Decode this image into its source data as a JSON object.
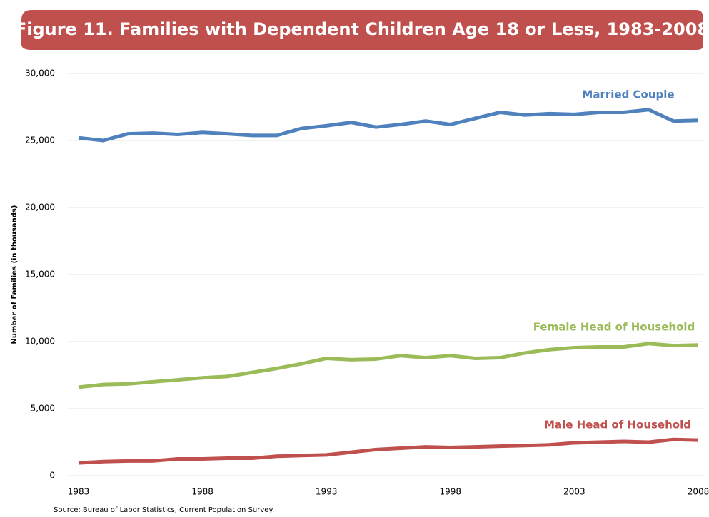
{
  "chart_data": {
    "type": "line",
    "title": "Figure 11. Families with Dependent Children Age 18 or Less, 1983-2008",
    "y_label": "Number of Families (in thousands)",
    "source": "Source: Bureau of Labor Statistics, Current Population Survey.",
    "x": [
      1983,
      1984,
      1985,
      1986,
      1987,
      1988,
      1989,
      1990,
      1991,
      1992,
      1993,
      1994,
      1995,
      1996,
      1997,
      1998,
      1999,
      2000,
      2001,
      2002,
      2003,
      2004,
      2005,
      2006,
      2007,
      2008
    ],
    "series": [
      {
        "name": "Married Couple",
        "color": "#4f81bd",
        "values": [
          25200,
          25000,
          25500,
          25550,
          25450,
          25600,
          25500,
          25380,
          25380,
          25900,
          26100,
          26350,
          26000,
          26200,
          26450,
          26200,
          26650,
          27100,
          26900,
          27000,
          26950,
          27100,
          27100,
          27300,
          26450,
          26500
        ]
      },
      {
        "name": "Female Head of Household",
        "color": "#9bbb59",
        "values": [
          6600,
          6800,
          6850,
          7000,
          7150,
          7300,
          7400,
          7700,
          8000,
          8350,
          8750,
          8650,
          8700,
          8950,
          8800,
          8950,
          8750,
          8800,
          9150,
          9400,
          9550,
          9600,
          9600,
          9850,
          9700,
          9750
        ]
      },
      {
        "name": "Male Head of Household",
        "color": "#c0504d",
        "values": [
          950,
          1050,
          1100,
          1100,
          1250,
          1250,
          1300,
          1300,
          1450,
          1500,
          1550,
          1750,
          1950,
          2050,
          2150,
          2100,
          2150,
          2200,
          2250,
          2300,
          2450,
          2500,
          2550,
          2500,
          2700,
          2650
        ]
      }
    ],
    "xlim": [
      1983,
      2008
    ],
    "xticks": [
      1983,
      1988,
      1993,
      1998,
      2003,
      2008
    ],
    "ylim": [
      0,
      30000
    ],
    "yticks": [
      0,
      {
        "value": 5000,
        "label": "5,000"
      },
      {
        "value": 10000,
        "label": "10,000"
      },
      {
        "value": 15000,
        "label": "15,000"
      },
      {
        "value": 20000,
        "label": "20,000"
      },
      {
        "value": 25000,
        "label": "25,000"
      },
      {
        "value": 30000,
        "label": "30,000"
      }
    ],
    "grid": true
  }
}
